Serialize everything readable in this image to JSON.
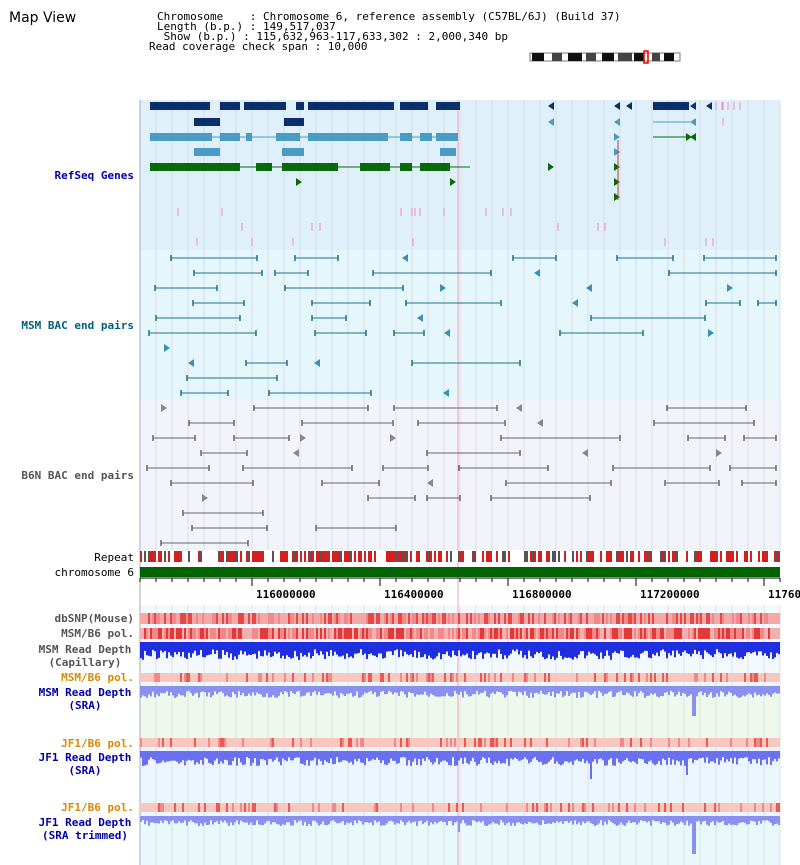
{
  "view": {
    "title": "Map View",
    "info_lines": [
      "Chromosome    : Chromosome 6, reference assembly (C57BL/6J) (Build 37)",
      "Length (b.p.) : 149,517,037",
      " Show (b.p.) : 115,632,963-117,633,302 : 2,000,340 bp",
      "Read coverage check span : 10,000"
    ]
  },
  "tracks": {
    "refseq": {
      "label": "RefSeq Genes",
      "color": "#0000aa"
    },
    "msm_bac": {
      "label": "MSM BAC end pairs",
      "color": "#005f80"
    },
    "b6n_bac": {
      "label": "B6N BAC end pairs",
      "color": "#555555"
    },
    "repeat": {
      "label": "Repeat"
    },
    "chromosome": {
      "label": "chromosome 6"
    },
    "dbsnp": {
      "label": "dbSNP(Mouse)"
    },
    "msm_pol": {
      "label": "MSM/B6 pol."
    },
    "msm_cap": {
      "label_1": "MSM Read Depth",
      "label_2": "(Capillary)"
    },
    "msm_pol2": {
      "label": "MSM/B6 pol."
    },
    "msm_sra": {
      "label_1": "MSM Read Depth",
      "label_2": "(SRA)"
    },
    "jf1_pol": {
      "label": "JF1/B6 pol."
    },
    "jf1_sra": {
      "label_1": "JF1 Read Depth",
      "label_2": "(SRA)"
    },
    "jf1_pol2": {
      "label": "JF1/B6 pol."
    },
    "jf1_trim": {
      "label_1": "JF1 Read Depth",
      "label_2": "(SRA trimmed)"
    }
  },
  "axis": {
    "ticks": [
      "116000000",
      "116400000",
      "116800000",
      "117200000",
      "11760"
    ]
  },
  "colors": {
    "refseq_bg": "#dff0fb",
    "msm_bg": "#e6f7fb",
    "b6n_bg": "#f3f4fb",
    "gene_navy": "#0b2f6b",
    "gene_teal": "#4a9cc4",
    "gene_green": "#0a6a0a",
    "chromosome": "#006400"
  }
}
